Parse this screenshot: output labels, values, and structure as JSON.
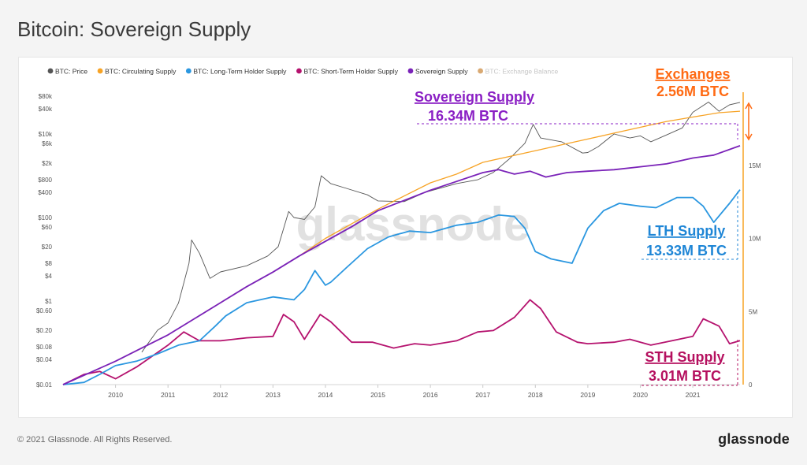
{
  "page": {
    "title": "Bitcoin: Sovereign Supply",
    "footer_copyright": "© 2021 Glassnode. All Rights Reserved.",
    "brand": "glassnode"
  },
  "chart_data": {
    "type": "line",
    "title": "Bitcoin: Sovereign Supply",
    "watermark": "glassnode",
    "legend": [
      {
        "label": "BTC: Price",
        "color": "#555555"
      },
      {
        "label": "BTC: Circulating Supply",
        "color": "#f7a325"
      },
      {
        "label": "BTC: Long-Term Holder Supply",
        "color": "#2b97e0"
      },
      {
        "label": "BTC: Short-Term Holder Supply",
        "color": "#b5126e"
      },
      {
        "label": "Sovereign Supply",
        "color": "#7a22b8"
      },
      {
        "label": "BTC: Exchange Balance",
        "color": "#d9a972",
        "inactive": true
      }
    ],
    "x_axis": {
      "range": [
        2009.0,
        2021.9
      ],
      "ticks": [
        "2010",
        "2011",
        "2012",
        "2013",
        "2014",
        "2015",
        "2016",
        "2017",
        "2018",
        "2019",
        "2020",
        "2021"
      ]
    },
    "y_left": {
      "scale": "log",
      "range": [
        0.01,
        100000
      ],
      "ticks": [
        "$80k",
        "$40k",
        "$10k",
        "$6k",
        "$2k",
        "$800",
        "$400",
        "$100",
        "$60",
        "$20",
        "$8",
        "$4",
        "$1",
        "$0.60",
        "$0.20",
        "$0.08",
        "$0.04",
        "$0.01"
      ]
    },
    "y_right": {
      "scale": "linear",
      "range": [
        0,
        20000000
      ],
      "ticks": [
        "0",
        "5M",
        "10M",
        "15M"
      ]
    },
    "series": [
      {
        "name": "BTC: Circulating Supply",
        "axis": "right",
        "color": "#f7a325",
        "x": [
          2009.0,
          2009.5,
          2010.0,
          2010.5,
          2011.0,
          2011.5,
          2012.0,
          2012.5,
          2013.0,
          2013.5,
          2014.0,
          2014.5,
          2015.0,
          2015.5,
          2016.0,
          2016.5,
          2017.0,
          2017.5,
          2018.0,
          2018.5,
          2019.0,
          2019.5,
          2020.0,
          2020.5,
          2021.0,
          2021.5,
          2021.9
        ],
        "values": [
          0,
          800000,
          1600000,
          2500000,
          3400000,
          4500000,
          5600000,
          6700000,
          7700000,
          8800000,
          10000000,
          11000000,
          12000000,
          12900000,
          13800000,
          14400000,
          15200000,
          15600000,
          16000000,
          16400000,
          16800000,
          17200000,
          17600000,
          18000000,
          18300000,
          18600000,
          18700000
        ]
      },
      {
        "name": "Sovereign Supply",
        "axis": "right",
        "color": "#7a22b8",
        "x": [
          2009.0,
          2009.5,
          2010.0,
          2010.5,
          2011.0,
          2011.5,
          2012.0,
          2012.5,
          2013.0,
          2013.5,
          2014.0,
          2014.5,
          2015.0,
          2015.5,
          2016.0,
          2016.5,
          2017.0,
          2017.3,
          2017.6,
          2017.9,
          2018.2,
          2018.6,
          2019.0,
          2019.5,
          2020.0,
          2020.5,
          2021.0,
          2021.4,
          2021.9
        ],
        "values": [
          0,
          800000,
          1600000,
          2500000,
          3400000,
          4500000,
          5600000,
          6700000,
          7700000,
          8800000,
          9800000,
          10800000,
          11900000,
          12600000,
          13300000,
          13900000,
          14500000,
          14700000,
          14400000,
          14600000,
          14200000,
          14500000,
          14600000,
          14700000,
          14900000,
          15100000,
          15500000,
          15700000,
          16340000
        ]
      },
      {
        "name": "BTC: Long-Term Holder Supply",
        "axis": "right",
        "color": "#2b97e0",
        "x": [
          2009.0,
          2009.4,
          2009.7,
          2010.0,
          2010.4,
          2010.8,
          2011.2,
          2011.6,
          2011.9,
          2012.1,
          2012.5,
          2013.0,
          2013.4,
          2013.6,
          2013.8,
          2014.0,
          2014.1,
          2014.4,
          2014.8,
          2015.2,
          2015.6,
          2016.0,
          2016.5,
          2016.9,
          2017.3,
          2017.6,
          2017.8,
          2018.0,
          2018.3,
          2018.7,
          2019.0,
          2019.3,
          2019.6,
          2020.0,
          2020.3,
          2020.7,
          2021.0,
          2021.2,
          2021.4,
          2021.7,
          2021.9
        ],
        "values": [
          0,
          150000,
          700000,
          1300000,
          1600000,
          2100000,
          2700000,
          3000000,
          4000000,
          4700000,
          5600000,
          6000000,
          5800000,
          6500000,
          7800000,
          6800000,
          7000000,
          8000000,
          9300000,
          10100000,
          10500000,
          10400000,
          10900000,
          11100000,
          11600000,
          11500000,
          10700000,
          9100000,
          8600000,
          8300000,
          10700000,
          11900000,
          12400000,
          12200000,
          12100000,
          12800000,
          12800000,
          12200000,
          11100000,
          12400000,
          13330000
        ]
      },
      {
        "name": "BTC: Short-Term Holder Supply",
        "axis": "right",
        "color": "#b5126e",
        "x": [
          2009.0,
          2009.4,
          2009.7,
          2010.0,
          2010.4,
          2010.8,
          2011.0,
          2011.3,
          2011.6,
          2012.0,
          2012.5,
          2013.0,
          2013.2,
          2013.4,
          2013.6,
          2013.9,
          2014.1,
          2014.5,
          2014.9,
          2015.3,
          2015.7,
          2016.0,
          2016.5,
          2016.9,
          2017.2,
          2017.6,
          2017.9,
          2018.1,
          2018.4,
          2018.8,
          2019.0,
          2019.5,
          2019.8,
          2020.2,
          2020.6,
          2021.0,
          2021.2,
          2021.5,
          2021.7,
          2021.9
        ],
        "values": [
          0,
          700000,
          900000,
          400000,
          1200000,
          2200000,
          2700000,
          3600000,
          3000000,
          3000000,
          3200000,
          3300000,
          4800000,
          4300000,
          3100000,
          4800000,
          4300000,
          2900000,
          2900000,
          2500000,
          2800000,
          2700000,
          3000000,
          3600000,
          3700000,
          4600000,
          5800000,
          5200000,
          3600000,
          2900000,
          2800000,
          2900000,
          3100000,
          2700000,
          3000000,
          3300000,
          4500000,
          4000000,
          2800000,
          3010000
        ]
      },
      {
        "name": "BTC: Price",
        "axis": "left",
        "color": "#555555",
        "x": [
          2010.5,
          2010.8,
          2011.0,
          2011.2,
          2011.4,
          2011.45,
          2011.6,
          2011.8,
          2012.0,
          2012.5,
          2012.9,
          2013.1,
          2013.3,
          2013.4,
          2013.6,
          2013.8,
          2013.92,
          2014.1,
          2014.4,
          2014.8,
          2015.0,
          2015.5,
          2015.9,
          2016.5,
          2016.9,
          2017.2,
          2017.5,
          2017.8,
          2017.96,
          2018.1,
          2018.5,
          2018.9,
          2019.0,
          2019.2,
          2019.5,
          2019.8,
          2020.0,
          2020.2,
          2020.5,
          2020.8,
          2021.0,
          2021.3,
          2021.5,
          2021.7,
          2021.9
        ],
        "values": [
          0.06,
          0.2,
          0.3,
          0.9,
          8,
          29,
          14,
          3.5,
          5,
          7,
          12,
          20,
          140,
          100,
          90,
          180,
          1000,
          650,
          500,
          350,
          250,
          240,
          400,
          650,
          800,
          1200,
          2500,
          6000,
          17000,
          8000,
          6500,
          3500,
          3600,
          5000,
          10000,
          8000,
          9000,
          6500,
          9500,
          14000,
          33000,
          58000,
          35000,
          50000,
          57000
        ]
      }
    ],
    "annotations": [
      {
        "label": "Exchanges",
        "value_label": "2.56M BTC",
        "color": "#ff6a13"
      },
      {
        "label": "Sovereign Supply",
        "value_label": "16.34M BTC",
        "color": "#8a1fc4"
      },
      {
        "label": "LTH Supply",
        "value_label": "13.33M BTC",
        "color": "#1f86d6"
      },
      {
        "label": "STH Supply",
        "value_label": "3.01M BTC",
        "color": "#b5105f"
      }
    ]
  }
}
